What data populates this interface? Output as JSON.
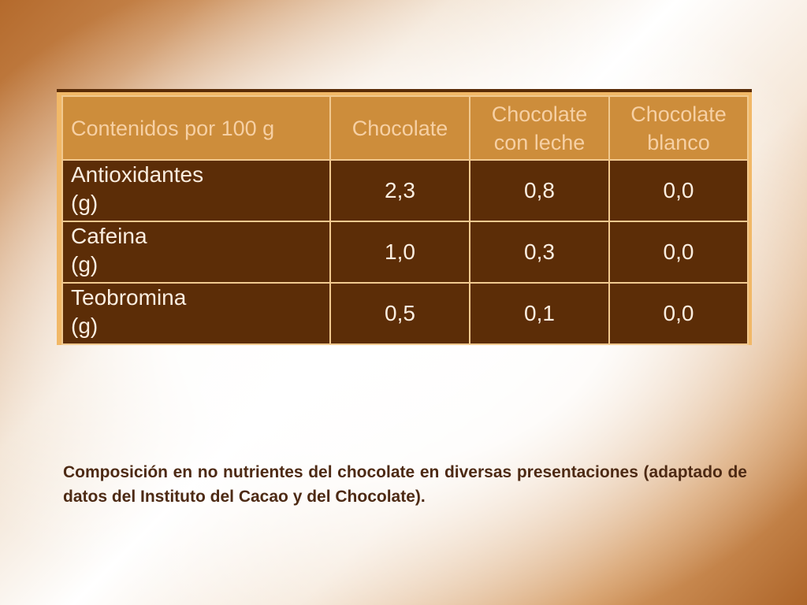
{
  "table": {
    "headers": [
      "Contenidos por 100 g",
      "Chocolate",
      [
        "Chocolate",
        "con leche"
      ],
      [
        "Chocolate",
        "blanco"
      ]
    ],
    "rows": [
      {
        "name": "Antioxidantes",
        "unit": "(g)",
        "values": [
          "2,3",
          "0,8",
          "0,0"
        ]
      },
      {
        "name": "Cafeina",
        "unit": "(g)",
        "values": [
          "1,0",
          "0,3",
          "0,0"
        ]
      },
      {
        "name": "Teobromina",
        "unit": "(g)",
        "values": [
          "0,5",
          "0,1",
          "0,0"
        ]
      }
    ]
  },
  "caption": "Composición en no nutrientes del chocolate en diversas presentaciones (adaptado de datos del Instituto del Cacao y del Chocolate).",
  "colors": {
    "header_background": "#cd8d3b",
    "header_text": "#f6d0a4",
    "body_background": "#5c2d07",
    "body_text": "#fbeee0",
    "frame": "#f1b867",
    "caption_text": "#4d2a14"
  }
}
